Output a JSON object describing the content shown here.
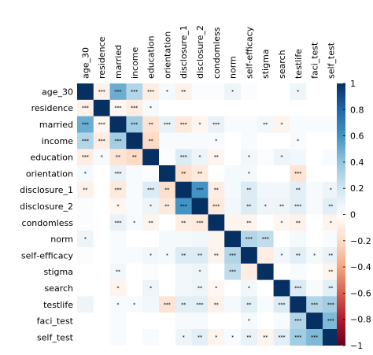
{
  "chart_data": {
    "type": "heatmap",
    "variables": [
      "age_30",
      "residence",
      "married",
      "income",
      "education",
      "orientation",
      "disclosure_1",
      "disclosure_2",
      "condomless",
      "norm",
      "self‑efficacy",
      "stigma",
      "search",
      "testlife",
      "faci_test",
      "self_test"
    ],
    "matrix": [
      [
        1,
        -0.08,
        0.5,
        0.3,
        -0.1,
        0.05,
        -0.08,
        0.02,
        0.02,
        0.08,
        0.02,
        0,
        0,
        0.08,
        0,
        0
      ],
      [
        -0.08,
        1,
        -0.05,
        -0.1,
        0.04,
        0,
        0,
        0,
        0,
        0,
        0,
        0,
        0,
        0,
        0,
        0
      ],
      [
        0.5,
        -0.05,
        1,
        0.35,
        -0.15,
        0.1,
        -0.12,
        -0.05,
        0.1,
        0.03,
        0.03,
        0.06,
        -0.06,
        0.03,
        0.03,
        0.03
      ],
      [
        0.3,
        -0.1,
        0.35,
        1,
        -0.2,
        0.03,
        0.03,
        0.03,
        0.03,
        0,
        0.03,
        0,
        0,
        0.03,
        0,
        0
      ],
      [
        -0.1,
        0.04,
        -0.15,
        -0.2,
        1,
        0.02,
        0.15,
        0.08,
        -0.06,
        0,
        0.06,
        0.02,
        0.08,
        0.06,
        0,
        0.03
      ],
      [
        0.05,
        0,
        0.1,
        0.03,
        0.02,
        1,
        -0.18,
        -0.12,
        0,
        0.05,
        0.05,
        0,
        0,
        -0.15,
        0,
        0
      ],
      [
        -0.08,
        0,
        -0.12,
        0.03,
        0.15,
        -0.18,
        1,
        0.6,
        -0.1,
        0.05,
        0.15,
        0.06,
        0.06,
        0.12,
        0.04,
        0.08
      ],
      [
        0.02,
        0,
        -0.05,
        0.03,
        0.08,
        -0.12,
        0.6,
        1,
        -0.12,
        0.06,
        0.15,
        0.08,
        0.08,
        0.12,
        0.04,
        0.12
      ],
      [
        0.02,
        0,
        0.1,
        0.03,
        -0.06,
        0,
        -0.1,
        -0.12,
        1,
        -0.06,
        -0.06,
        0,
        -0.05,
        -0.08,
        0,
        -0.06
      ],
      [
        0.08,
        0,
        0.03,
        0,
        0,
        0.05,
        0.05,
        0.06,
        -0.06,
        1,
        0.3,
        0.25,
        0,
        0.05,
        0,
        0.03
      ],
      [
        0.02,
        0,
        0.03,
        0.03,
        0.06,
        0.05,
        0.15,
        0.15,
        -0.06,
        0.3,
        1,
        -0.1,
        0.06,
        0.12,
        0.05,
        0.1
      ],
      [
        0,
        0,
        0.06,
        0,
        0.02,
        0,
        0.06,
        0.08,
        0,
        0.25,
        -0.1,
        1,
        0,
        0.03,
        0,
        -0.06
      ],
      [
        0,
        0,
        -0.06,
        0,
        0.08,
        0,
        0.06,
        0.08,
        -0.05,
        0,
        0.06,
        0,
        1,
        0.15,
        0.03,
        0.12
      ],
      [
        0.08,
        0,
        0.03,
        0.03,
        0.06,
        -0.15,
        0.12,
        0.12,
        -0.08,
        0.05,
        0.12,
        0.03,
        0.15,
        1,
        0.3,
        0.35
      ],
      [
        0,
        0,
        0.03,
        0,
        0,
        0,
        0.04,
        0.04,
        0,
        0,
        0.05,
        0,
        0.03,
        0.3,
        1,
        0.45
      ],
      [
        0,
        0,
        0.03,
        0,
        0.03,
        0,
        0.08,
        0.12,
        -0.06,
        0.03,
        0.1,
        -0.06,
        0.12,
        0.35,
        0.45,
        1
      ]
    ],
    "significance": [
      [
        "",
        "***",
        "***",
        "***",
        "***",
        "*",
        "**",
        "",
        "",
        "*",
        "",
        "",
        "",
        "*",
        "",
        ""
      ],
      [
        "***",
        "",
        "***",
        "***",
        "*",
        "",
        "",
        "",
        "",
        "",
        "",
        "",
        "",
        "",
        "",
        ""
      ],
      [
        "***",
        "***",
        "",
        "***",
        "**",
        "***",
        "***",
        "*",
        "***",
        "",
        "",
        "**",
        "*",
        "",
        "",
        ""
      ],
      [
        "***",
        "***",
        "***",
        "",
        "**",
        "",
        "",
        "",
        "*",
        "",
        "",
        "",
        "",
        "*",
        "",
        ""
      ],
      [
        "***",
        "*",
        "**",
        "**",
        "",
        "",
        "***",
        "*",
        "**",
        "",
        "*",
        "",
        "*",
        "",
        "",
        ""
      ],
      [
        "*",
        "",
        "***",
        "",
        "",
        "",
        "**",
        "**",
        "",
        "",
        "*",
        "",
        "",
        "***",
        "",
        ""
      ],
      [
        "**",
        "",
        "***",
        "",
        "***",
        "**",
        "",
        "***",
        "**",
        "",
        "**",
        "",
        "",
        "**",
        "",
        "*"
      ],
      [
        "",
        "",
        "*",
        "",
        "*",
        "**",
        "***",
        "",
        "***",
        "",
        "**",
        "*",
        "**",
        "***",
        "",
        "**"
      ],
      [
        "",
        "",
        "***",
        "*",
        "**",
        "",
        "**",
        "***",
        "",
        "",
        "**",
        "",
        "*",
        "**",
        "",
        "*"
      ],
      [
        "*",
        "",
        "",
        "",
        "",
        "",
        "",
        "",
        "",
        "",
        "***",
        "***",
        "",
        "",
        "",
        ""
      ],
      [
        "",
        "",
        "",
        "",
        "*",
        "*",
        "**",
        "**",
        "**",
        "***",
        "",
        "",
        "*",
        "**",
        "*",
        "**"
      ],
      [
        "",
        "",
        "**",
        "",
        "",
        "",
        "",
        "*",
        "",
        "***",
        "",
        "",
        "",
        "",
        "",
        "**"
      ],
      [
        "",
        "",
        "*",
        "",
        "*",
        "",
        "",
        "**",
        "*",
        "",
        "*",
        "",
        "",
        "***",
        "",
        "**"
      ],
      [
        "",
        "",
        "*",
        "*",
        "",
        "***",
        "**",
        "***",
        "**",
        "",
        "**",
        "",
        "***",
        "",
        "***",
        "***"
      ],
      [
        "",
        "",
        "",
        "",
        "",
        "",
        "",
        "",
        "",
        "",
        "*",
        "",
        "",
        "***",
        "",
        "***"
      ],
      [
        "",
        "",
        "",
        "",
        "",
        "",
        "*",
        "**",
        "*",
        "*",
        "**",
        "**",
        "***",
        "***",
        "***",
        ""
      ]
    ],
    "colorbar": {
      "range": [
        -1,
        1
      ],
      "ticks": [
        "1",
        "0.8",
        "0.6",
        "0.4",
        "0.2",
        "0",
        "−0.2",
        "−0.4",
        "−0.6",
        "−0.8",
        "−1"
      ],
      "colors": [
        "#053061",
        "#2166ac",
        "#4393c3",
        "#92c5de",
        "#d1e5f0",
        "#ffffff",
        "#fddbc7",
        "#f4a582",
        "#d6604d",
        "#b2182b",
        "#67001f"
      ]
    }
  }
}
